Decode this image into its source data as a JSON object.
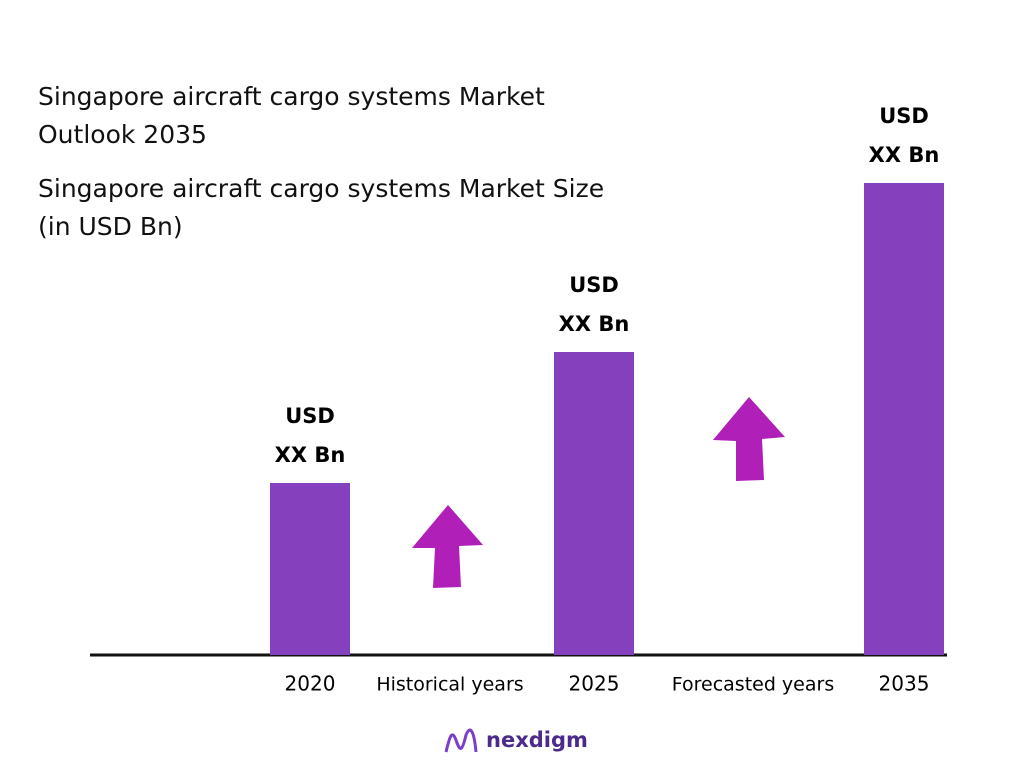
{
  "chart_data": {
    "type": "bar",
    "title": "Singapore aircraft cargo systems Market Outlook 2035",
    "subtitle": "Singapore aircraft cargo systems Market Size (in USD Bn)",
    "categories": [
      "2020",
      "2025",
      "2035"
    ],
    "values": [
      172,
      303,
      472
    ],
    "value_labels": [
      [
        "USD",
        "XX Bn"
      ],
      [
        "USD",
        "XX Bn"
      ],
      [
        "USD",
        "XX Bn"
      ]
    ],
    "color": "#8440bd",
    "ylim": [
      0,
      500
    ],
    "annotations": [
      "Historical years",
      "Forecasted years"
    ],
    "logo": "nexdigm"
  }
}
